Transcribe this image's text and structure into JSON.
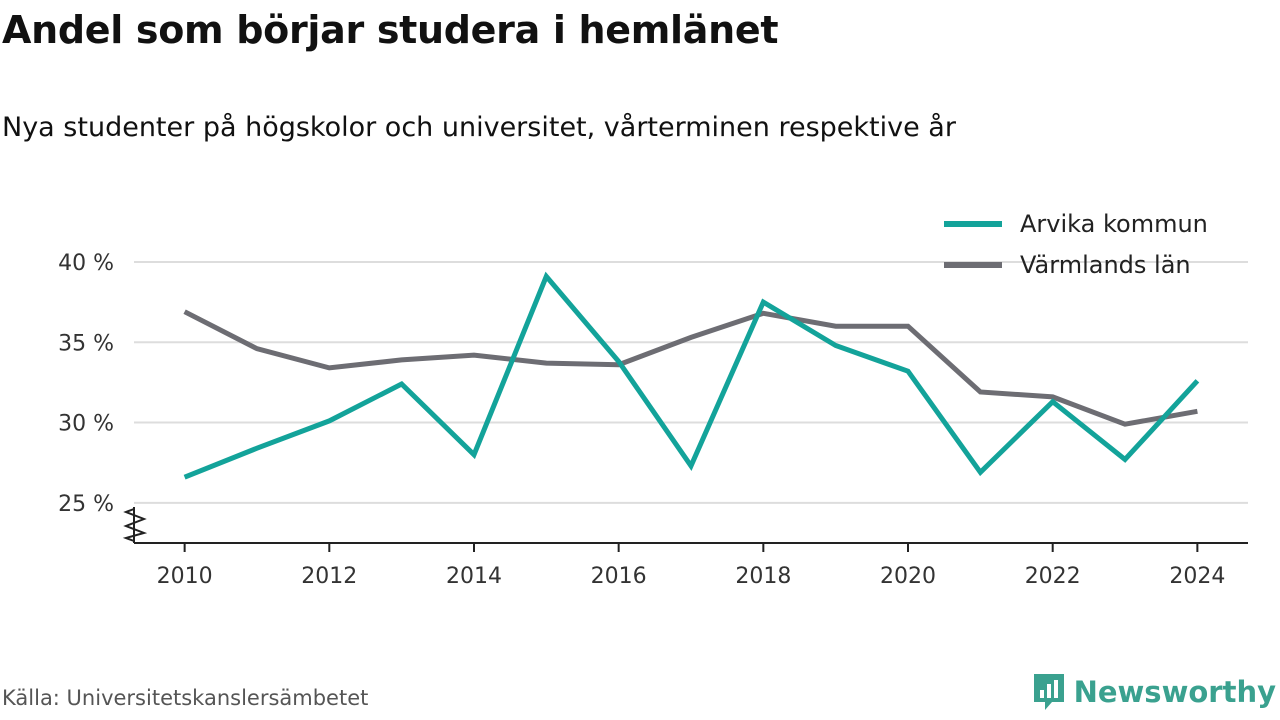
{
  "title": "Andel som börjar studera i hemlänet",
  "subtitle": "Nya studenter på högskolor och universitet, vårterminen respektive år",
  "source": "Källa: Universitetskanslersämbetet",
  "brand": "Newsworthy",
  "colors": {
    "teal": "#13a39a",
    "grey": "#6d6d73",
    "brand": "#3aa18f",
    "grid": "#dddddd"
  },
  "chart_data": {
    "type": "line",
    "x": [
      2010,
      2011,
      2012,
      2013,
      2014,
      2015,
      2016,
      2017,
      2018,
      2019,
      2020,
      2021,
      2022,
      2023,
      2024
    ],
    "series": [
      {
        "name": "Arvika kommun",
        "color": "#13a39a",
        "values": [
          26.6,
          28.4,
          30.1,
          32.4,
          28.0,
          39.1,
          33.8,
          27.3,
          37.5,
          34.8,
          33.2,
          26.9,
          31.3,
          27.7,
          32.6
        ]
      },
      {
        "name": "Värmlands län",
        "color": "#6d6d73",
        "values": [
          36.9,
          34.6,
          33.4,
          33.9,
          34.2,
          33.7,
          33.6,
          35.3,
          36.8,
          36.0,
          36.0,
          31.9,
          31.6,
          29.9,
          30.7
        ]
      }
    ],
    "xticks": [
      2010,
      2012,
      2014,
      2016,
      2018,
      2020,
      2022,
      2024
    ],
    "xtick_labels": [
      "2010",
      "2012",
      "2014",
      "2016",
      "2018",
      "2020",
      "2022",
      "2024"
    ],
    "yticks": [
      25,
      30,
      35,
      40
    ],
    "ytick_labels": [
      "25 %",
      "30 %",
      "35 %",
      "40 %"
    ],
    "xlim": [
      2009.3,
      2024.7
    ],
    "ylim": [
      22.5,
      40
    ],
    "axis_break": true,
    "grid": "horizontal",
    "legend": "top-right"
  }
}
